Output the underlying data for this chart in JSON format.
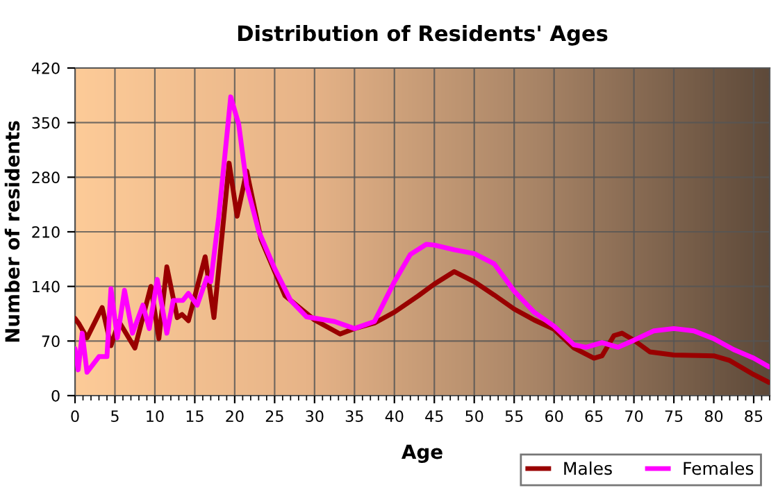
{
  "chart_data": {
    "type": "line",
    "title": "Distribution of Residents' Ages",
    "xlabel": "Age",
    "ylabel": "Number of residents",
    "xlim": [
      0,
      87
    ],
    "xticks": [
      0,
      5,
      10,
      15,
      20,
      25,
      30,
      35,
      40,
      45,
      50,
      55,
      60,
      65,
      70,
      75,
      80,
      85
    ],
    "ylim": [
      0,
      420
    ],
    "yticks": [
      0,
      70,
      140,
      210,
      280,
      350,
      420
    ],
    "grid": true,
    "legend": "bottom right",
    "series": [
      {
        "name": "Males",
        "color": "#990000",
        "x": [
          0,
          0.5,
          1.5,
          3.4,
          4.5,
          5.5,
          7.5,
          9.5,
          10.5,
          11.5,
          12.8,
          13.4,
          14.2,
          16.3,
          17.4,
          19.3,
          20.3,
          21.5,
          23.3,
          26.3,
          30,
          33.2,
          35,
          37.5,
          40,
          43,
          45,
          47.5,
          50,
          52.5,
          55,
          57.5,
          60,
          62.5,
          65,
          66,
          67.5,
          68.5,
          70,
          72,
          75,
          80,
          82,
          85,
          86.9
        ],
        "values": [
          99,
          92,
          74,
          113,
          64,
          95,
          61,
          140,
          73,
          165,
          100,
          104,
          96,
          178,
          100,
          298,
          230,
          288,
          200,
          128,
          97,
          79,
          86,
          93,
          107,
          128,
          143,
          159,
          146,
          129,
          111,
          97,
          85,
          61,
          48,
          51,
          77,
          80,
          71,
          56,
          52,
          51,
          45,
          27,
          17
        ]
      },
      {
        "name": "Females",
        "color": "#ff00ff",
        "x": [
          0,
          0.4,
          0.9,
          1.5,
          3,
          4,
          4.5,
          5.3,
          6.2,
          7.2,
          8.5,
          9.3,
          10.3,
          11.5,
          12.3,
          13.5,
          14.2,
          15.3,
          16.5,
          17,
          18,
          19.5,
          20.5,
          21.5,
          23,
          25,
          27,
          29,
          32.5,
          35,
          37.5,
          40,
          42,
          44,
          45,
          47.5,
          50,
          52.5,
          55,
          57.5,
          60,
          62.5,
          64,
          66,
          68,
          70,
          72.5,
          75,
          77.5,
          80,
          82.5,
          85,
          86.9
        ],
        "values": [
          60,
          33,
          80,
          30,
          50,
          50,
          137,
          74,
          135,
          80,
          116,
          86,
          149,
          80,
          122,
          122,
          131,
          116,
          151,
          146,
          229,
          383,
          348,
          270,
          211,
          163,
          122,
          101,
          95,
          86,
          95,
          146,
          181,
          194,
          193,
          187,
          182,
          169,
          134,
          107,
          89,
          65,
          62,
          68,
          62,
          71,
          83,
          86,
          83,
          73,
          59,
          48,
          37
        ]
      }
    ]
  }
}
